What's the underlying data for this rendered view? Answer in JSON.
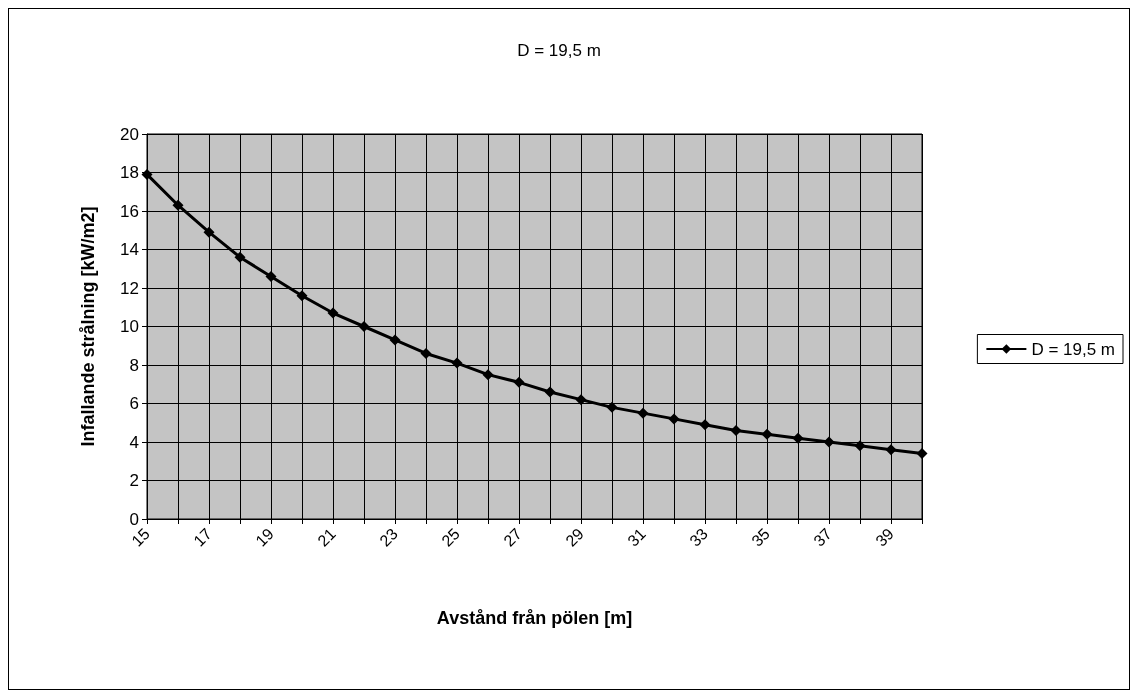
{
  "chart_data": {
    "type": "line",
    "title": "D = 19,5 m",
    "xlabel": "Avstånd från pölen [m]",
    "ylabel": "Infallande strålning [kW/m2]",
    "categories": [
      "15",
      null,
      "17",
      null,
      "19",
      null,
      "21",
      null,
      "23",
      null,
      "25",
      null,
      "27",
      null,
      "29",
      null,
      "31",
      null,
      "33",
      null,
      "35",
      null,
      "37",
      null,
      "39",
      null
    ],
    "series": [
      {
        "name": "D = 19,5 m",
        "color": "#000000",
        "values": [
          17.9,
          16.3,
          14.9,
          13.6,
          12.6,
          11.6,
          10.7,
          10.0,
          9.3,
          8.6,
          8.1,
          7.5,
          7.1,
          6.6,
          6.2,
          5.8,
          5.5,
          5.2,
          4.9,
          4.6,
          4.4,
          4.2,
          4.0,
          3.8,
          3.6,
          3.4
        ]
      }
    ],
    "ylim": [
      0,
      20
    ],
    "yticks": [
      0,
      2,
      4,
      6,
      8,
      10,
      12,
      14,
      16,
      18,
      20
    ],
    "grid": true,
    "legend": "right",
    "marker": "diamond",
    "line_style": "solid"
  }
}
